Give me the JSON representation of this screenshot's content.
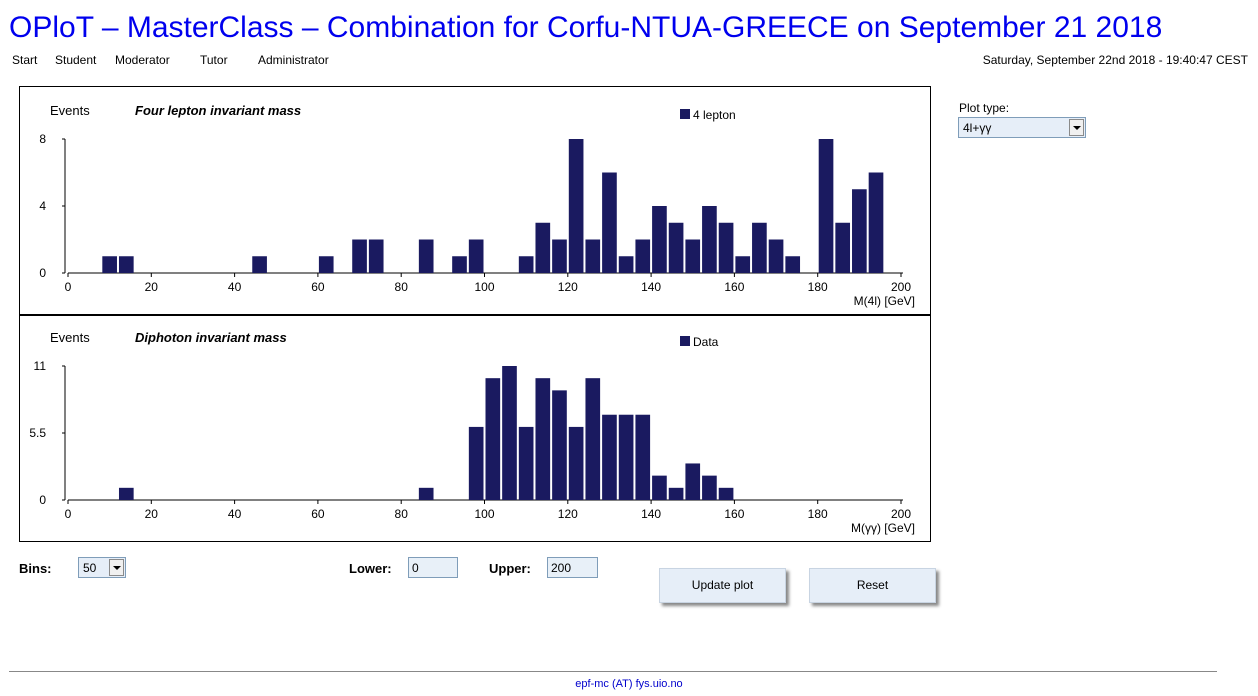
{
  "header": {
    "title": "OPloT – MasterClass – Combination for Corfu-NTUA-GREECE on September 21 2018",
    "datetime": "Saturday, September 22nd 2018 - 19:40:47 CEST"
  },
  "nav": {
    "items": [
      "Start",
      "Student",
      "Moderator",
      "Tutor",
      "Administrator"
    ]
  },
  "plot_type": {
    "label": "Plot type:",
    "value": "4l+γγ"
  },
  "controls": {
    "bins_label": "Bins:",
    "bins_value": "50",
    "lower_label": "Lower:",
    "lower_value": "0",
    "upper_label": "Upper:",
    "upper_value": "200",
    "update_label": "Update plot",
    "reset_label": "Reset"
  },
  "footer": {
    "contact": "epf-mc (AT) fys.uio.no"
  },
  "colors": {
    "bar": "#1a1a60",
    "title": "#0000ee",
    "input_bg": "#e8f0f8"
  },
  "chart_data": [
    {
      "type": "bar",
      "ylabel": "Events",
      "title": "Four lepton invariant mass",
      "xlabel": "M(4l) [GeV]",
      "legend": "4 lepton",
      "legend_position": "top-right",
      "xlim": [
        0,
        200
      ],
      "ylim": [
        0,
        8
      ],
      "yticks": [
        "0",
        "4",
        "8"
      ],
      "xticks": [
        "0",
        "20",
        "40",
        "60",
        "80",
        "100",
        "120",
        "140",
        "160",
        "180",
        "200"
      ],
      "bin_width": 4,
      "values": [
        0,
        0,
        1,
        1,
        0,
        0,
        0,
        0,
        0,
        0,
        0,
        1,
        0,
        0,
        0,
        1,
        0,
        2,
        2,
        0,
        0,
        2,
        0,
        1,
        2,
        0,
        0,
        1,
        3,
        2,
        8,
        2,
        6,
        1,
        2,
        4,
        3,
        2,
        4,
        3,
        1,
        3,
        2,
        1,
        0,
        8,
        3,
        5,
        6,
        0
      ]
    },
    {
      "type": "bar",
      "ylabel": "Events",
      "title": "Diphoton invariant mass",
      "xlabel": "M(γγ) [GeV]",
      "legend": "Data",
      "legend_position": "top-right",
      "xlim": [
        0,
        200
      ],
      "ylim": [
        0,
        11
      ],
      "yticks": [
        "0",
        "5.5",
        "11"
      ],
      "xticks": [
        "0",
        "20",
        "40",
        "60",
        "80",
        "100",
        "120",
        "140",
        "160",
        "180",
        "200"
      ],
      "bin_width": 4,
      "values": [
        0,
        0,
        0,
        1,
        0,
        0,
        0,
        0,
        0,
        0,
        0,
        0,
        0,
        0,
        0,
        0,
        0,
        0,
        0,
        0,
        0,
        1,
        0,
        0,
        6,
        10,
        11,
        6,
        10,
        9,
        6,
        10,
        7,
        7,
        7,
        2,
        1,
        3,
        2,
        1,
        0,
        0,
        0,
        0,
        0,
        0,
        0,
        0,
        0,
        0
      ]
    }
  ]
}
